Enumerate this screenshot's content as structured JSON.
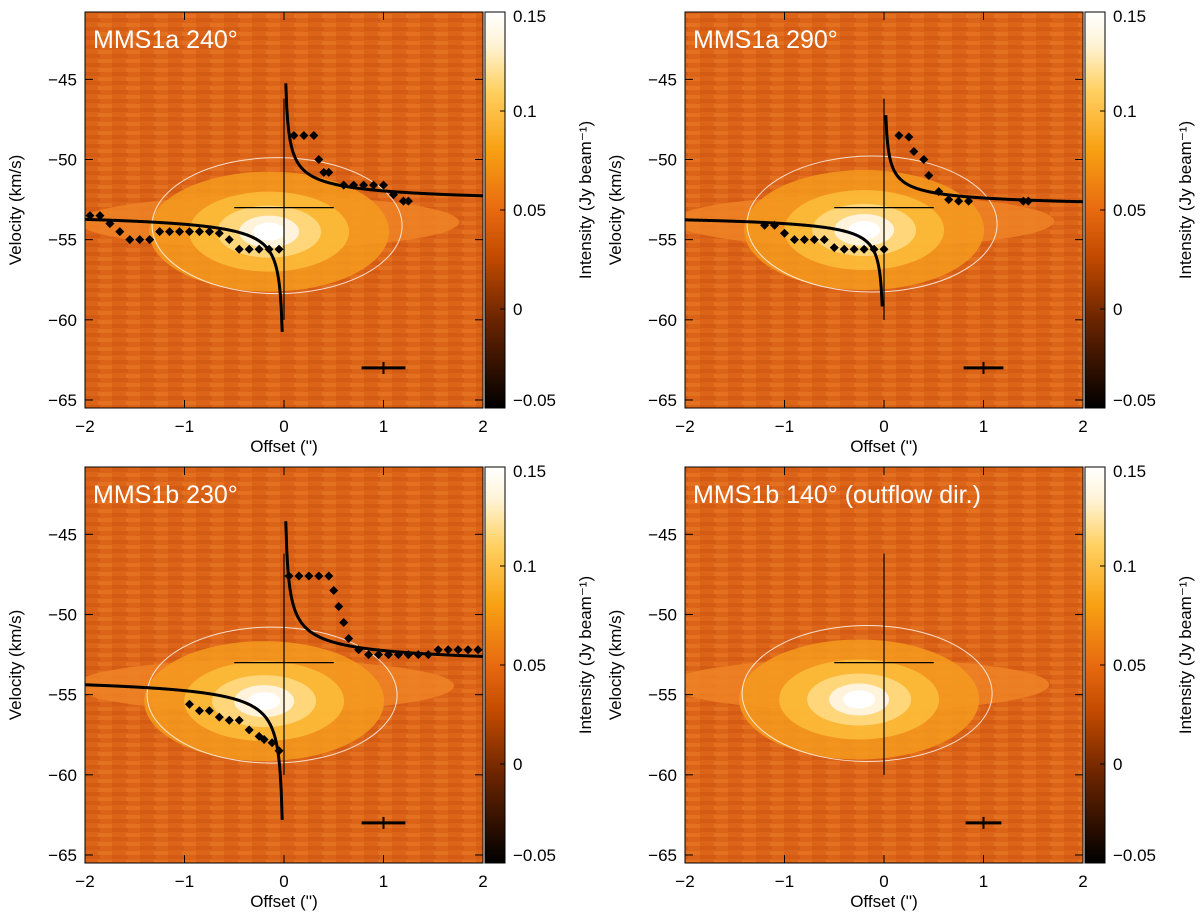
{
  "chart_data": [
    {
      "type": "heatmap",
      "title": "MMS1a 240°",
      "xlabel": "Offset ('')",
      "ylabel": "Velocity (km/s)",
      "colorbar_label": "Intensity (Jy beam⁻¹)",
      "xlim": [
        -2,
        2
      ],
      "ylim": [
        -65.5,
        -40.8
      ],
      "xticks": [
        -2,
        -1,
        0,
        1,
        2
      ],
      "xtick_labels": [
        "−2",
        "−1",
        "0",
        "1",
        "2"
      ],
      "yticks": [
        -45,
        -50,
        -55,
        -60,
        -65
      ],
      "ytick_labels": [
        "−45",
        "−50",
        "−55",
        "−60",
        "−65"
      ],
      "colorbar_ticks": [
        0.15,
        0.1,
        0.05,
        0,
        -0.05
      ],
      "colorbar_tick_labels": [
        "0.15",
        "0.1",
        "0.05",
        "0",
        "−0.05"
      ],
      "vlim": [
        -0.05,
        0.15
      ],
      "emission": {
        "peak_offset": -0.15,
        "peak_velocity": -54.5
      },
      "cross_center": {
        "offset": 0,
        "velocity": -53
      },
      "markers": [
        {
          "offset": 0.1,
          "velocity": -48.5
        },
        {
          "offset": 0.2,
          "velocity": -48.5
        },
        {
          "offset": 0.3,
          "velocity": -48.5
        },
        {
          "offset": 0.35,
          "velocity": -50
        },
        {
          "offset": 0.4,
          "velocity": -50.8
        },
        {
          "offset": 0.45,
          "velocity": -50.8
        },
        {
          "offset": 0.6,
          "velocity": -51.6
        },
        {
          "offset": 0.7,
          "velocity": -51.6
        },
        {
          "offset": 0.8,
          "velocity": -51.6
        },
        {
          "offset": 0.9,
          "velocity": -51.6
        },
        {
          "offset": 1.0,
          "velocity": -51.6
        },
        {
          "offset": 1.1,
          "velocity": -52.2
        },
        {
          "offset": 1.2,
          "velocity": -52.6
        },
        {
          "offset": 1.25,
          "velocity": -52.6
        },
        {
          "offset": -1.95,
          "velocity": -53.5
        },
        {
          "offset": -1.85,
          "velocity": -53.5
        },
        {
          "offset": -1.75,
          "velocity": -54
        },
        {
          "offset": -1.65,
          "velocity": -54.5
        },
        {
          "offset": -1.55,
          "velocity": -55
        },
        {
          "offset": -1.45,
          "velocity": -55
        },
        {
          "offset": -1.35,
          "velocity": -55
        },
        {
          "offset": -1.25,
          "velocity": -54.5
        },
        {
          "offset": -1.15,
          "velocity": -54.5
        },
        {
          "offset": -1.05,
          "velocity": -54.5
        },
        {
          "offset": -0.95,
          "velocity": -54.5
        },
        {
          "offset": -0.85,
          "velocity": -54.5
        },
        {
          "offset": -0.75,
          "velocity": -54.5
        },
        {
          "offset": -0.65,
          "velocity": -54.6
        },
        {
          "offset": -0.55,
          "velocity": -55
        },
        {
          "offset": -0.45,
          "velocity": -55.6
        },
        {
          "offset": -0.35,
          "velocity": -55.6
        },
        {
          "offset": -0.25,
          "velocity": -55.6
        },
        {
          "offset": -0.15,
          "velocity": -55.6
        },
        {
          "offset": -0.05,
          "velocity": -55.6
        }
      ],
      "kepler_fit": {
        "amplitude": 1.04,
        "systemic_velocity": -53
      },
      "beam_offset": 1.0,
      "beam_velocity": -63,
      "beam_halfwidth": 0.22
    },
    {
      "type": "heatmap",
      "title": "MMS1a 290°",
      "xlabel": "Offset ('')",
      "ylabel": "Velocity (km/s)",
      "colorbar_label": "Intensity (Jy beam⁻¹)",
      "xlim": [
        -2,
        2
      ],
      "ylim": [
        -65.5,
        -40.8
      ],
      "xticks": [
        -2,
        -1,
        0,
        1,
        2
      ],
      "xtick_labels": [
        "−2",
        "−1",
        "0",
        "1",
        "2"
      ],
      "yticks": [
        -45,
        -50,
        -55,
        -60,
        -65
      ],
      "ytick_labels": [
        "−45",
        "−50",
        "−55",
        "−60",
        "−65"
      ],
      "colorbar_ticks": [
        0.15,
        0.1,
        0.05,
        0,
        -0.05
      ],
      "colorbar_tick_labels": [
        "0.15",
        "0.1",
        "0.05",
        "0",
        "−0.05"
      ],
      "vlim": [
        -0.05,
        0.15
      ],
      "emission": {
        "peak_offset": -0.2,
        "peak_velocity": -54.4
      },
      "cross_center": {
        "offset": 0,
        "velocity": -53
      },
      "markers": [
        {
          "offset": 0.15,
          "velocity": -48.5
        },
        {
          "offset": 0.25,
          "velocity": -48.6
        },
        {
          "offset": 0.3,
          "velocity": -49.5
        },
        {
          "offset": 0.4,
          "velocity": -50
        },
        {
          "offset": 0.45,
          "velocity": -51
        },
        {
          "offset": 0.55,
          "velocity": -52
        },
        {
          "offset": 0.65,
          "velocity": -52.5
        },
        {
          "offset": 0.75,
          "velocity": -52.6
        },
        {
          "offset": 0.85,
          "velocity": -52.6
        },
        {
          "offset": 1.4,
          "velocity": -52.6
        },
        {
          "offset": 1.45,
          "velocity": -52.6
        },
        {
          "offset": -1.2,
          "velocity": -54.1
        },
        {
          "offset": -1.1,
          "velocity": -54.1
        },
        {
          "offset": -1.0,
          "velocity": -54.6
        },
        {
          "offset": -0.9,
          "velocity": -55
        },
        {
          "offset": -0.8,
          "velocity": -55
        },
        {
          "offset": -0.7,
          "velocity": -55
        },
        {
          "offset": -0.6,
          "velocity": -55
        },
        {
          "offset": -0.5,
          "velocity": -55.5
        },
        {
          "offset": -0.4,
          "velocity": -55.6
        },
        {
          "offset": -0.3,
          "velocity": -55.6
        },
        {
          "offset": -0.2,
          "velocity": -55.6
        },
        {
          "offset": -0.1,
          "velocity": -55.6
        },
        {
          "offset": 0.0,
          "velocity": -55.6
        }
      ],
      "kepler_fit": {
        "amplitude": 0.8,
        "systemic_velocity": -53.2
      },
      "beam_offset": 1.0,
      "beam_velocity": -63,
      "beam_halfwidth": 0.2
    },
    {
      "type": "heatmap",
      "title": "MMS1b 230°",
      "xlabel": "Offset ('')",
      "ylabel": "Velocity (km/s)",
      "colorbar_label": "Intensity (Jy beam⁻¹)",
      "xlim": [
        -2,
        2
      ],
      "ylim": [
        -65.5,
        -40.8
      ],
      "xticks": [
        -2,
        -1,
        0,
        1,
        2
      ],
      "xtick_labels": [
        "−2",
        "−1",
        "0",
        "1",
        "2"
      ],
      "yticks": [
        -45,
        -50,
        -55,
        -60,
        -65
      ],
      "ytick_labels": [
        "−45",
        "−50",
        "−55",
        "−60",
        "−65"
      ],
      "colorbar_ticks": [
        0.15,
        0.1,
        0.05,
        0,
        -0.05
      ],
      "colorbar_tick_labels": [
        "0.15",
        "0.1",
        "0.05",
        "0",
        "−0.05"
      ],
      "vlim": [
        -0.05,
        0.15
      ],
      "emission": {
        "peak_offset": -0.2,
        "peak_velocity": -55.4
      },
      "cross_center": {
        "offset": 0,
        "velocity": -53
      },
      "markers": [
        {
          "offset": 0.05,
          "velocity": -47.6
        },
        {
          "offset": 0.15,
          "velocity": -47.6
        },
        {
          "offset": 0.25,
          "velocity": -47.6
        },
        {
          "offset": 0.35,
          "velocity": -47.6
        },
        {
          "offset": 0.45,
          "velocity": -47.6
        },
        {
          "offset": 0.5,
          "velocity": -48.5
        },
        {
          "offset": 0.55,
          "velocity": -49.5
        },
        {
          "offset": 0.6,
          "velocity": -50.5
        },
        {
          "offset": 0.65,
          "velocity": -51.5
        },
        {
          "offset": 0.75,
          "velocity": -52.2
        },
        {
          "offset": 0.85,
          "velocity": -52.5
        },
        {
          "offset": 0.95,
          "velocity": -52.5
        },
        {
          "offset": 1.05,
          "velocity": -52.5
        },
        {
          "offset": 1.15,
          "velocity": -52.5
        },
        {
          "offset": 1.25,
          "velocity": -52.5
        },
        {
          "offset": 1.35,
          "velocity": -52.5
        },
        {
          "offset": 1.45,
          "velocity": -52.5
        },
        {
          "offset": 1.55,
          "velocity": -52.2
        },
        {
          "offset": 1.65,
          "velocity": -52.2
        },
        {
          "offset": 1.75,
          "velocity": -52.2
        },
        {
          "offset": 1.85,
          "velocity": -52.2
        },
        {
          "offset": 1.95,
          "velocity": -52.2
        },
        {
          "offset": -0.95,
          "velocity": -55.6
        },
        {
          "offset": -0.85,
          "velocity": -56
        },
        {
          "offset": -0.75,
          "velocity": -56
        },
        {
          "offset": -0.65,
          "velocity": -56.4
        },
        {
          "offset": -0.55,
          "velocity": -56.6
        },
        {
          "offset": -0.45,
          "velocity": -56.6
        },
        {
          "offset": -0.35,
          "velocity": -57.2
        },
        {
          "offset": -0.25,
          "velocity": -57.6
        },
        {
          "offset": -0.2,
          "velocity": -57.8
        },
        {
          "offset": -0.12,
          "velocity": -58
        },
        {
          "offset": -0.05,
          "velocity": -58.5
        }
      ],
      "kepler_fit": {
        "amplitude": 1.25,
        "systemic_velocity": -53.5
      },
      "beam_offset": 1.0,
      "beam_velocity": -63,
      "beam_halfwidth": 0.22
    },
    {
      "type": "heatmap",
      "title": "MMS1b 140° (outflow dir.)",
      "xlabel": "Offset ('')",
      "ylabel": "Velocity (km/s)",
      "colorbar_label": "Intensity (Jy beam⁻¹)",
      "xlim": [
        -2,
        2
      ],
      "ylim": [
        -65.5,
        -40.8
      ],
      "xticks": [
        -2,
        -1,
        0,
        1,
        2
      ],
      "xtick_labels": [
        "−2",
        "−1",
        "0",
        "1",
        "2"
      ],
      "yticks": [
        -45,
        -50,
        -55,
        -60,
        -65
      ],
      "ytick_labels": [
        "−45",
        "−50",
        "−55",
        "−60",
        "−65"
      ],
      "colorbar_ticks": [
        0.15,
        0.1,
        0.05,
        0,
        -0.05
      ],
      "colorbar_tick_labels": [
        "0.15",
        "0.1",
        "0.05",
        "0",
        "−0.05"
      ],
      "vlim": [
        -0.05,
        0.15
      ],
      "emission": {
        "peak_offset": -0.25,
        "peak_velocity": -55.3
      },
      "cross_center": {
        "offset": 0,
        "velocity": -53
      },
      "markers": [],
      "kepler_fit": null,
      "beam_offset": 1.0,
      "beam_velocity": -63,
      "beam_halfwidth": 0.18
    }
  ]
}
